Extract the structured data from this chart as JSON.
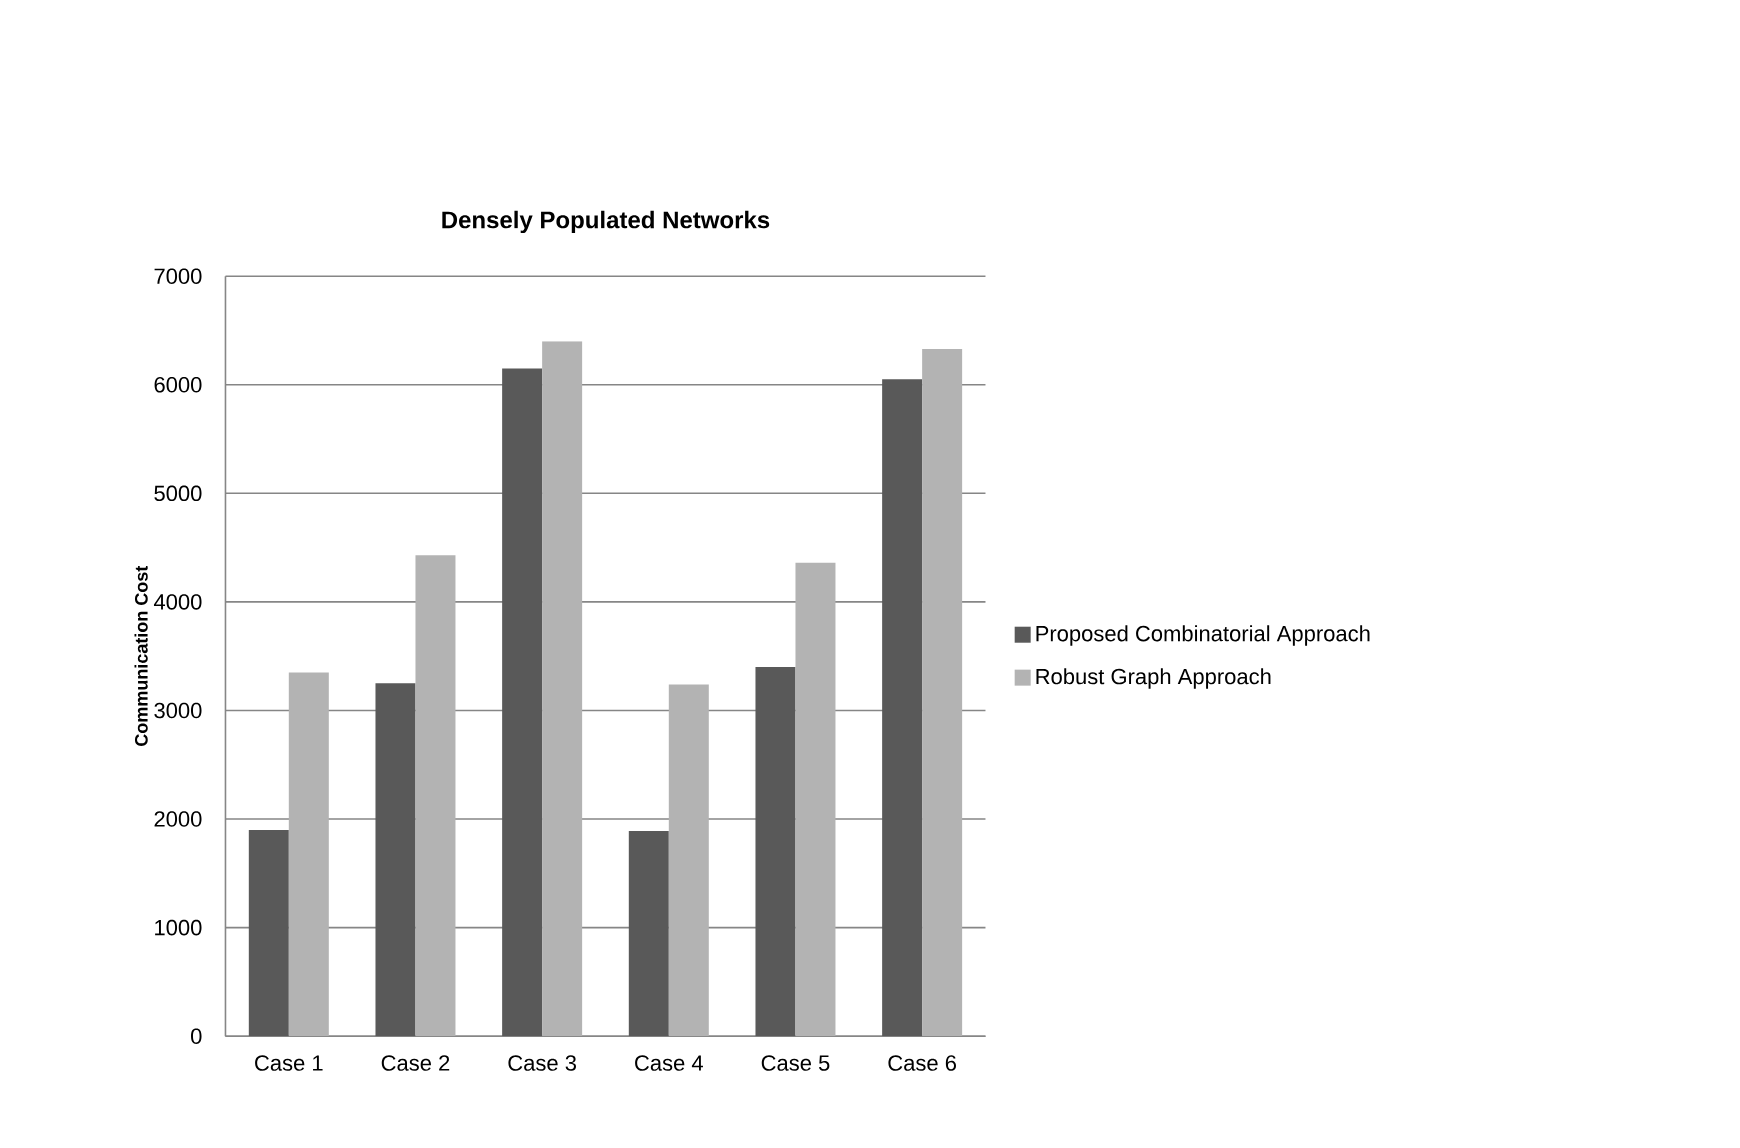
{
  "chart_data": {
    "type": "bar",
    "title": "Densely  Populated Networks",
    "ylabel": "Communication Cost",
    "categories": [
      "Case 1",
      "Case 2",
      "Case 3",
      "Case 4",
      "Case 5",
      "Case 6"
    ],
    "series": [
      {
        "name": "Proposed Combinatorial Approach",
        "color": "#595959",
        "values": [
          1900,
          3250,
          6150,
          1890,
          3400,
          6050
        ]
      },
      {
        "name": "Robust Graph Approach",
        "color": "#b3b3b3",
        "values": [
          3350,
          4430,
          6400,
          3240,
          4360,
          6330
        ]
      }
    ],
    "ylim": [
      0,
      7000
    ],
    "yticks": [
      0,
      1000,
      2000,
      3000,
      4000,
      5000,
      6000,
      7000
    ],
    "grid": "y",
    "legend": "right"
  }
}
